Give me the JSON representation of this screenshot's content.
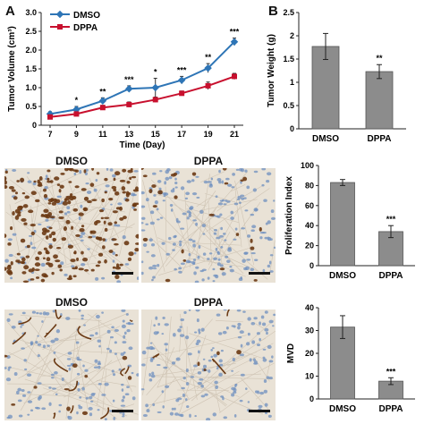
{
  "panels": {
    "a_letter": "A",
    "b_letter": "B"
  },
  "micrographs": {
    "row1": {
      "left_label": "DMSO",
      "right_label": "DPPA"
    },
    "row2": {
      "left_label": "DMSO",
      "right_label": "DPPA"
    },
    "colors": {
      "tissue": "#e9e2d6",
      "nuclei_blue": "#6d8fbf",
      "stain_brown": "#6b3a14"
    }
  },
  "chart_data": [
    {
      "id": "tumor-volume",
      "type": "line",
      "x": [
        7,
        9,
        11,
        13,
        15,
        17,
        19,
        21
      ],
      "xlabel": "Time (Day)",
      "ylabel": "Tumor Volume (cm³)",
      "ylim": [
        0,
        3.0
      ],
      "yticks": [
        "0",
        "0.5",
        "1.0",
        "1.5",
        "2.0",
        "2.5",
        "3.0"
      ],
      "xticks": [
        "7",
        "9",
        "11",
        "13",
        "15",
        "17",
        "19",
        "21"
      ],
      "legend_position": "top-left",
      "series": [
        {
          "name": "DMSO",
          "color": "#2e75b6",
          "values": [
            0.3,
            0.42,
            0.65,
            0.97,
            1.0,
            1.2,
            1.52,
            2.22
          ],
          "errors": [
            0.06,
            0.08,
            0.08,
            0.08,
            0.25,
            0.1,
            0.12,
            0.1
          ]
        },
        {
          "name": "DPPA",
          "color": "#c8102e",
          "values": [
            0.22,
            0.3,
            0.47,
            0.55,
            0.68,
            0.85,
            1.05,
            1.3
          ],
          "errors": [
            0.04,
            0.05,
            0.06,
            0.07,
            0.07,
            0.06,
            0.1,
            0.08
          ]
        }
      ],
      "significance": [
        "",
        "*",
        "**",
        "***",
        "*",
        "***",
        "**",
        "***"
      ]
    },
    {
      "id": "tumor-weight",
      "type": "bar",
      "categories": [
        "DMSO",
        "DPPA"
      ],
      "values": [
        1.77,
        1.23
      ],
      "errors": [
        0.28,
        0.15
      ],
      "ylabel": "Tumor Weight (g)",
      "ylim": [
        0,
        2.5
      ],
      "yticks": [
        "0",
        "0.5",
        "1",
        "1.5",
        "2",
        "2.5"
      ],
      "significance": [
        "",
        "**"
      ],
      "color": "#8c8c8c"
    },
    {
      "id": "proliferation-index",
      "type": "bar",
      "categories": [
        "DMSO",
        "DPPA"
      ],
      "values": [
        83,
        34
      ],
      "errors": [
        3,
        6
      ],
      "ylabel": "Proliferation Index",
      "ylim": [
        0,
        100
      ],
      "yticks": [
        "0",
        "20",
        "40",
        "60",
        "80",
        "100"
      ],
      "significance": [
        "",
        "***"
      ],
      "color": "#8c8c8c"
    },
    {
      "id": "mvd",
      "type": "bar",
      "categories": [
        "DMSO",
        "DPPA"
      ],
      "values": [
        31.5,
        7.8
      ],
      "errors": [
        5,
        1.5
      ],
      "ylabel": "MVD",
      "ylim": [
        0,
        40
      ],
      "yticks": [
        "0",
        "10",
        "20",
        "30",
        "40"
      ],
      "significance": [
        "",
        "***"
      ],
      "color": "#8c8c8c"
    }
  ]
}
